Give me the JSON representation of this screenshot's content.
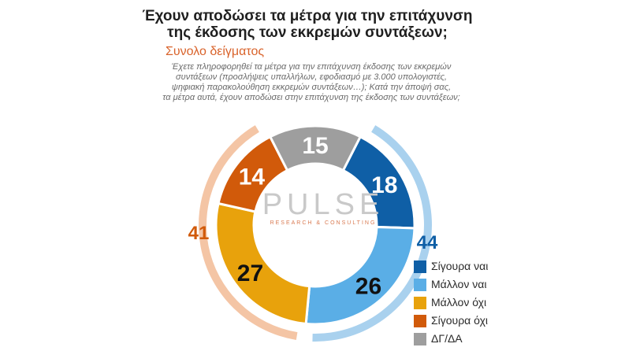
{
  "title_line1": "Έχουν αποδώσει τα μέτρα για την επιτάχυνση",
  "title_line2": "της έκδοσης των εκκρεμών συντάξεων;",
  "subtitle": "Συνολο δείγματος",
  "question_line1": "Έχετε πληροφορηθεί τα μέτρα για την επιτάχυνση έκδοσης των εκκρεμών",
  "question_line2": "συντάξεων (προσλήψεις υπαλλήλων, εφοδιασμό με 3.000 υπολογιστές,",
  "question_line3": "ψηφιακή παρακολούθηση εκκρεμών συντάξεων…); Κατά την άποψή σας,",
  "question_line4": "τα μέτρα αυτά, έχουν αποδώσει στην επιτάχυνση της έκδοσης των συντάξεων;",
  "logo": {
    "main": "PULSE",
    "sub": "RESEARCH & CONSULTING"
  },
  "chart_data": {
    "type": "pie",
    "categories": [
      "Σίγουρα ναι",
      "Μάλλον ναι",
      "Μάλλον όχι",
      "Σίγουρα όχι",
      "ΔΓ/ΔΑ"
    ],
    "values": [
      18,
      26,
      27,
      14,
      15
    ],
    "colors": [
      "#0f5fa6",
      "#5aaee6",
      "#e8a20c",
      "#d15a0a",
      "#9e9e9e"
    ],
    "groups": [
      {
        "value": 44,
        "color": "#a9d1ee",
        "label_color": "#0f5fa6",
        "members": [
          0,
          1
        ]
      },
      {
        "value": 41,
        "color": "#f4c5a5",
        "label_color": "#d15a0a",
        "members": [
          2,
          3
        ]
      }
    ],
    "legend_position": "bottom-right",
    "style": "donut"
  }
}
